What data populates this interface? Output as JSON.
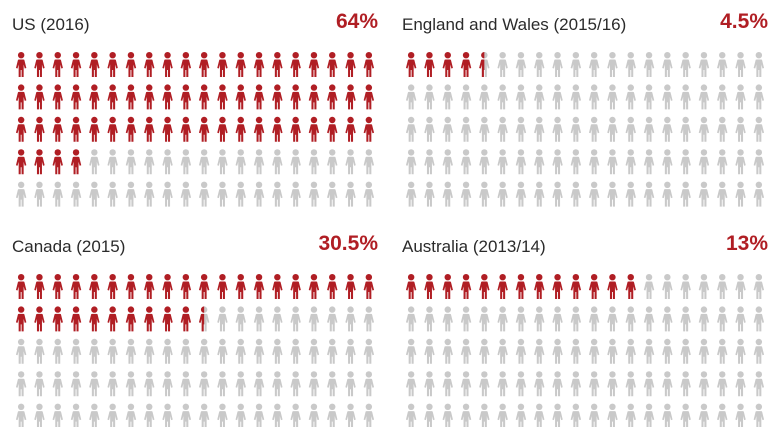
{
  "chart_data": [
    {
      "type": "pictograph",
      "title": "US (2016)",
      "value_label": "64%",
      "value": 64,
      "total_icons": 100,
      "grid": {
        "rows": 5,
        "cols": 20
      }
    },
    {
      "type": "pictograph",
      "title": "England and Wales (2015/16)",
      "value_label": "4.5%",
      "value": 4.5,
      "total_icons": 100,
      "grid": {
        "rows": 5,
        "cols": 20
      }
    },
    {
      "type": "pictograph",
      "title": "Canada (2015)",
      "value_label": "30.5%",
      "value": 30.5,
      "total_icons": 100,
      "grid": {
        "rows": 5,
        "cols": 20
      }
    },
    {
      "type": "pictograph",
      "title": "Australia (2013/14)",
      "value_label": "13%",
      "value": 13,
      "total_icons": 100,
      "grid": {
        "rows": 5,
        "cols": 20
      }
    }
  ],
  "colors": {
    "filled": "#b01e24",
    "empty": "#c9c9c9",
    "value_text": "#b01e24",
    "title_text": "#2b2b2b"
  }
}
